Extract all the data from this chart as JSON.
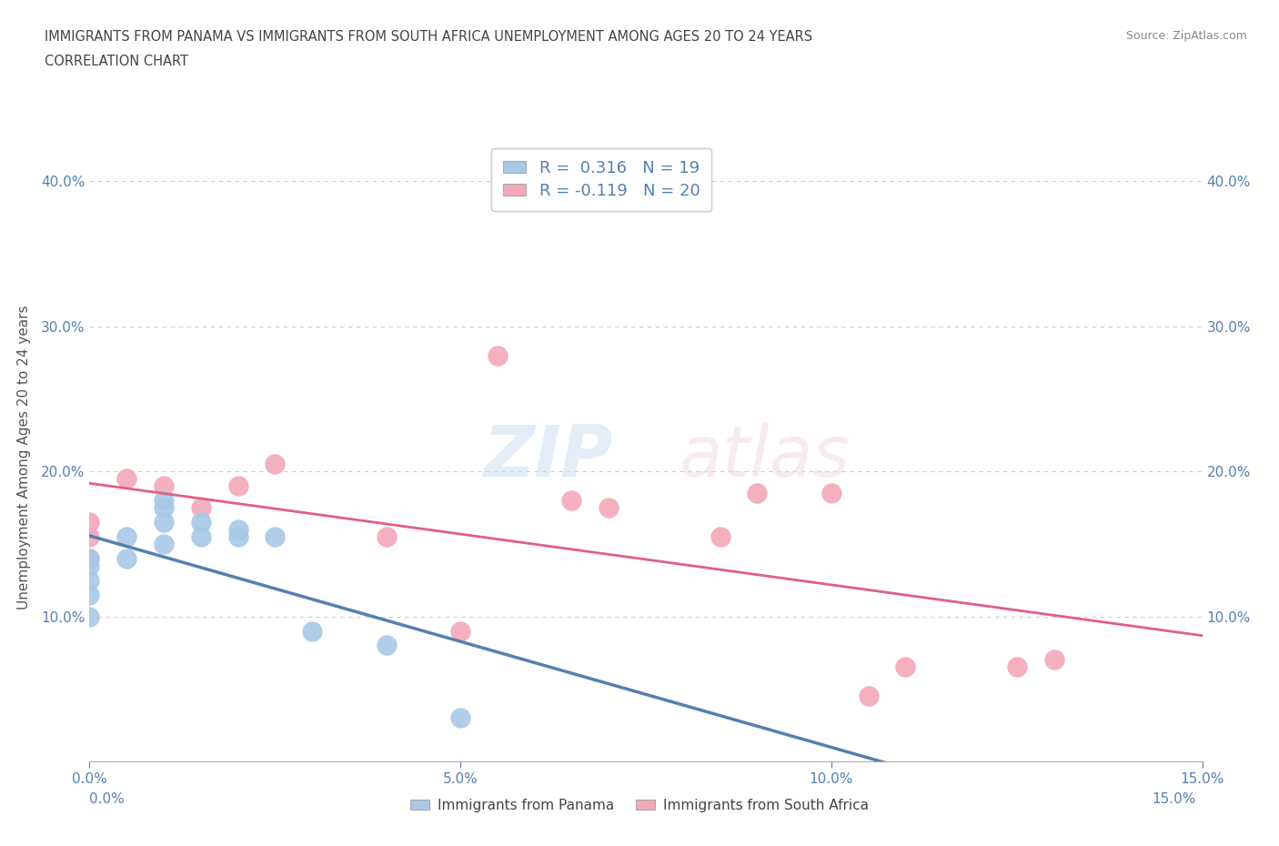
{
  "title_line1": "IMMIGRANTS FROM PANAMA VS IMMIGRANTS FROM SOUTH AFRICA UNEMPLOYMENT AMONG AGES 20 TO 24 YEARS",
  "title_line2": "CORRELATION CHART",
  "source": "Source: ZipAtlas.com",
  "ylabel": "Unemployment Among Ages 20 to 24 years",
  "xlim": [
    0.0,
    0.15
  ],
  "ylim": [
    0.0,
    0.42
  ],
  "xticks": [
    0.0,
    0.05,
    0.1,
    0.15
  ],
  "yticks": [
    0.1,
    0.2,
    0.3,
    0.4
  ],
  "panama_color": "#a8c8e8",
  "sa_color": "#f4a8b8",
  "panama_line_color": "#5580b0",
  "sa_line_color": "#e06080",
  "panama_R": 0.316,
  "panama_N": 19,
  "sa_R": -0.119,
  "sa_N": 20,
  "panama_scatter_x": [
    0.0,
    0.0,
    0.0,
    0.0,
    0.0,
    0.005,
    0.005,
    0.01,
    0.01,
    0.01,
    0.01,
    0.015,
    0.015,
    0.02,
    0.02,
    0.025,
    0.03,
    0.04,
    0.05
  ],
  "panama_scatter_y": [
    0.1,
    0.115,
    0.125,
    0.135,
    0.14,
    0.14,
    0.155,
    0.15,
    0.165,
    0.175,
    0.18,
    0.155,
    0.165,
    0.155,
    0.16,
    0.155,
    0.09,
    0.08,
    0.03
  ],
  "sa_scatter_x": [
    0.0,
    0.0,
    0.0,
    0.005,
    0.01,
    0.015,
    0.02,
    0.025,
    0.04,
    0.05,
    0.055,
    0.065,
    0.07,
    0.085,
    0.09,
    0.1,
    0.105,
    0.11,
    0.125,
    0.13
  ],
  "sa_scatter_y": [
    0.14,
    0.155,
    0.165,
    0.195,
    0.19,
    0.175,
    0.19,
    0.205,
    0.155,
    0.09,
    0.28,
    0.18,
    0.175,
    0.155,
    0.185,
    0.185,
    0.045,
    0.065,
    0.065,
    0.07
  ],
  "grid_color": "#cccccc",
  "title_color": "#444444",
  "tick_color": "#5580b0",
  "ylabel_color": "#555555",
  "background_color": "#ffffff",
  "legend_label_color": "#5580b0"
}
